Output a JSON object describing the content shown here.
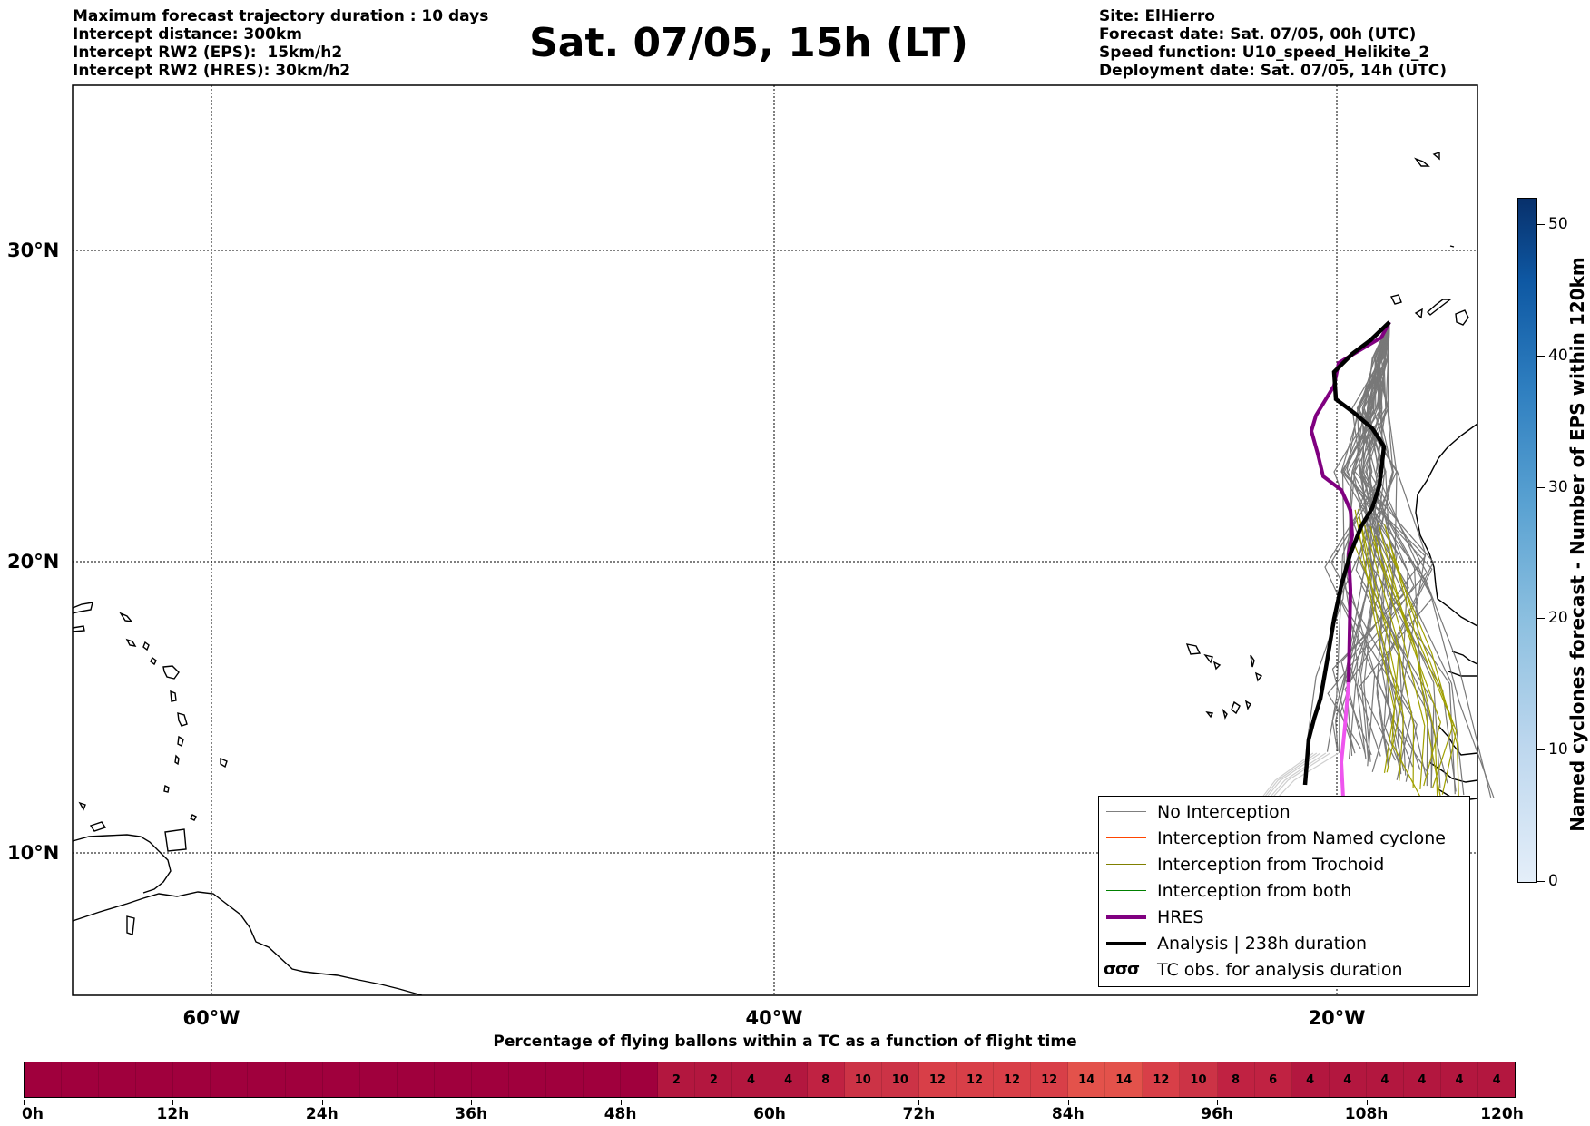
{
  "header_left": [
    "Maximum forecast trajectory duration : 10 days",
    "Intercept distance: 300km",
    "Intercept RW2 (EPS):  15km/h2",
    "Intercept RW2 (HRES): 30km/h2"
  ],
  "header_right": [
    "Site: ElHierro",
    "Forecast date: Sat. 07/05, 00h (UTC)",
    "Speed function: U10_speed_Helikite_2",
    "Deployment date: Sat. 07/05, 14h (UTC)"
  ],
  "title": "Sat. 07/05, 15h (LT)",
  "map": {
    "lat_labels": [
      "30°N",
      "20°N",
      "10°N"
    ],
    "lon_labels": [
      "60°W",
      "40°W",
      "20°W"
    ],
    "gridlines": "dotted"
  },
  "legend": [
    {
      "label": "No Interception",
      "color": "#7f7f7f"
    },
    {
      "label": "Interception from Named cyclone",
      "color": "#ff4500"
    },
    {
      "label": "Interception from Trochoid",
      "color": "#808000"
    },
    {
      "label": "Interception from both",
      "color": "#008000"
    },
    {
      "label": "HRES",
      "color": "#800080"
    },
    {
      "label": "Analysis | 238h duration",
      "color": "#000000"
    },
    {
      "label": "TC obs. for analysis duration",
      "symbol": "σσσ"
    }
  ],
  "colorbar": {
    "title": "Named cyclones forecast - Number of EPS within 120km",
    "ticks": [
      "0",
      "10",
      "20",
      "30",
      "40",
      "50"
    ]
  },
  "bar": {
    "title": "Percentage of flying ballons within a TC as a function of flight time",
    "cells": [
      "",
      "",
      "",
      "",
      "",
      "",
      "",
      "",
      "",
      "",
      "",
      "",
      "",
      "",
      "",
      "",
      "",
      "2",
      "2",
      "4",
      "4",
      "8",
      "10",
      "10",
      "12",
      "12",
      "12",
      "12",
      "14",
      "14",
      "12",
      "10",
      "8",
      "6",
      "4",
      "4",
      "4",
      "4",
      "4",
      "4"
    ],
    "time_labels": [
      "0h",
      "12h",
      "24h",
      "36h",
      "48h",
      "60h",
      "72h",
      "84h",
      "96h",
      "108h",
      "120h"
    ]
  }
}
